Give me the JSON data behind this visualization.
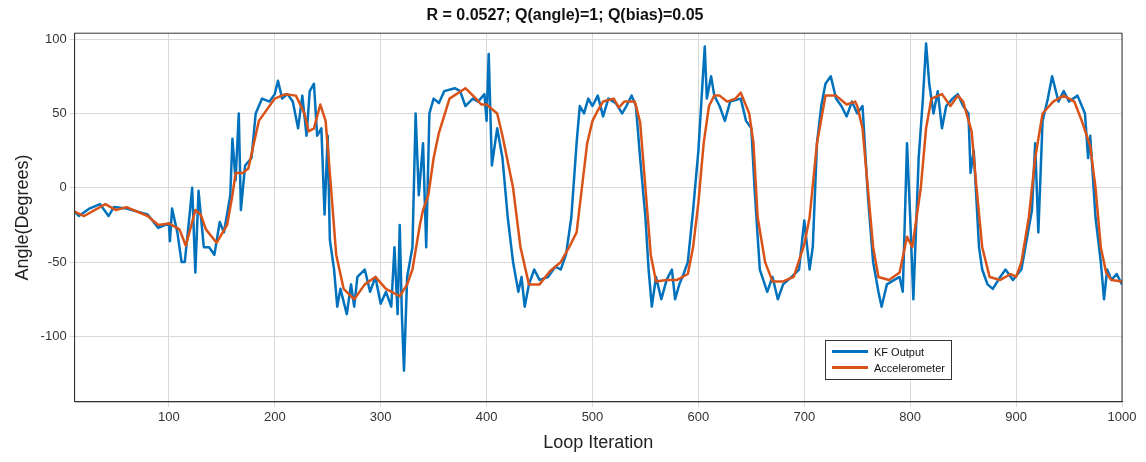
{
  "chart_data": {
    "type": "line",
    "title": "R = 0.0527; Q(angle)=1; Q(bias)=0.05",
    "xlabel": "Loop Iteration",
    "ylabel": "Angle(Degrees)",
    "xlim": [
      11,
      1000
    ],
    "xticks": [
      100,
      200,
      300,
      400,
      500,
      600,
      700,
      800,
      900,
      1000
    ],
    "ylim": [
      -144,
      104
    ],
    "yticks": [
      -100,
      -50,
      0,
      50,
      100
    ],
    "grid": true,
    "legend": "bottom right",
    "marker": "none",
    "line_style": "solid",
    "series": [
      {
        "name": "KF Output",
        "color": "#0072bd",
        "x": [
          11,
          15,
          25,
          35,
          43,
          48,
          60,
          80,
          90,
          100,
          101,
          103,
          108,
          112,
          115,
          120,
          122,
          125,
          128,
          133,
          138,
          143,
          148,
          152,
          158,
          160,
          163,
          166,
          168,
          172,
          178,
          182,
          188,
          195,
          200,
          203,
          207,
          212,
          217,
          222,
          226,
          230,
          233,
          237,
          240,
          244,
          247,
          250,
          252,
          256,
          259,
          262,
          268,
          272,
          275,
          278,
          285,
          290,
          295,
          300,
          305,
          310,
          313,
          316,
          318,
          320,
          322,
          325,
          330,
          333,
          336,
          340,
          343,
          346,
          350,
          355,
          360,
          370,
          375,
          380,
          387,
          392,
          398,
          400,
          402,
          405,
          410,
          415,
          420,
          425,
          430,
          433,
          436,
          440,
          445,
          450,
          458,
          465,
          470,
          475,
          480,
          485,
          488,
          492,
          496,
          500,
          505,
          510,
          515,
          522,
          528,
          532,
          537,
          541,
          545,
          550,
          553,
          556,
          560,
          565,
          570,
          575,
          578,
          582,
          586,
          590,
          595,
          600,
          603,
          606,
          608,
          612,
          615,
          620,
          625,
          630,
          640,
          645,
          650,
          653,
          658,
          665,
          670,
          675,
          680,
          688,
          695,
          700,
          705,
          708,
          712,
          716,
          720,
          725,
          730,
          735,
          740,
          745,
          750,
          755,
          760,
          765,
          770,
          773,
          778,
          785,
          790,
          793,
          797,
          800,
          803,
          808,
          812,
          815,
          818,
          822,
          826,
          830,
          834,
          840,
          845,
          850,
          855,
          857,
          860,
          865,
          868,
          873,
          878,
          885,
          890,
          897,
          905,
          910,
          915,
          918,
          921,
          925,
          930,
          934,
          940,
          945,
          950,
          958,
          965,
          968,
          970,
          975,
          980,
          983,
          986,
          990,
          995,
          1000
        ],
        "values": [
          -16,
          -19,
          -14,
          -11,
          -19,
          -13,
          -14,
          -18,
          -27,
          -24,
          -36,
          -14,
          -30,
          -50,
          -50,
          -15,
          0,
          -57,
          -2,
          -40,
          -40,
          -45,
          -23,
          -30,
          -5,
          33,
          5,
          50,
          -15,
          15,
          20,
          50,
          60,
          58,
          63,
          72,
          60,
          63,
          58,
          40,
          62,
          35,
          65,
          70,
          35,
          40,
          -18,
          35,
          -35,
          -55,
          -80,
          -68,
          -85,
          -65,
          -80,
          -60,
          -55,
          -70,
          -60,
          -78,
          -70,
          -80,
          -40,
          -85,
          -25,
          -85,
          -123,
          -60,
          -40,
          50,
          -5,
          30,
          -40,
          50,
          60,
          57,
          65,
          67,
          65,
          55,
          60,
          58,
          63,
          45,
          90,
          15,
          40,
          20,
          -20,
          -50,
          -70,
          -60,
          -80,
          -65,
          -55,
          -62,
          -60,
          -53,
          -55,
          -45,
          -20,
          30,
          55,
          50,
          60,
          55,
          62,
          48,
          60,
          57,
          50,
          55,
          62,
          55,
          20,
          -20,
          -55,
          -80,
          -60,
          -75,
          -62,
          -55,
          -75,
          -65,
          -58,
          -50,
          -15,
          25,
          60,
          95,
          60,
          75,
          62,
          55,
          45,
          58,
          60,
          45,
          40,
          0,
          -55,
          -70,
          -60,
          -75,
          -65,
          -60,
          -55,
          -22,
          -55,
          -40,
          30,
          55,
          70,
          75,
          60,
          55,
          48,
          58,
          50,
          55,
          -5,
          -50,
          -70,
          -80,
          -65,
          -62,
          -60,
          -70,
          30,
          -20,
          -75,
          20,
          60,
          97,
          70,
          50,
          65,
          40,
          55,
          60,
          63,
          55,
          50,
          10,
          25,
          -40,
          -55,
          -65,
          -68,
          -60,
          -55,
          -62,
          -55,
          -35,
          -15,
          30,
          -30,
          45,
          60,
          75,
          58,
          65,
          58,
          62,
          50,
          20,
          35,
          -20,
          -50,
          -75,
          -55,
          -62,
          -58,
          -65
        ]
      },
      {
        "name": "Accelerometer",
        "color": "#d95319",
        "x": [
          11,
          20,
          40,
          50,
          60,
          80,
          90,
          100,
          110,
          116,
          125,
          130,
          135,
          145,
          155,
          160,
          163,
          170,
          175,
          185,
          200,
          210,
          220,
          228,
          232,
          237,
          243,
          248,
          252,
          258,
          265,
          275,
          285,
          295,
          305,
          318,
          325,
          330,
          337,
          340,
          345,
          350,
          355,
          365,
          380,
          390,
          395,
          400,
          410,
          415,
          425,
          432,
          440,
          450,
          460,
          470,
          478,
          485,
          495,
          500,
          505,
          510,
          520,
          525,
          530,
          540,
          545,
          550,
          555,
          560,
          570,
          580,
          590,
          595,
          600,
          605,
          610,
          615,
          620,
          627,
          635,
          640,
          648,
          652,
          656,
          663,
          670,
          680,
          690,
          700,
          705,
          712,
          720,
          730,
          740,
          748,
          750,
          755,
          760,
          765,
          770,
          780,
          790,
          797,
          802,
          810,
          815,
          820,
          830,
          838,
          845,
          850,
          858,
          862,
          868,
          875,
          885,
          895,
          900,
          905,
          912,
          918,
          925,
          935,
          945,
          955,
          962,
          970,
          975,
          980,
          985,
          990,
          1000
        ],
        "values": [
          -16,
          -19,
          -11,
          -15,
          -13,
          -19,
          -25,
          -24,
          -28,
          -39,
          -15,
          -18,
          -28,
          -37,
          -25,
          -5,
          10,
          10,
          13,
          45,
          60,
          63,
          62,
          50,
          38,
          40,
          56,
          45,
          10,
          -45,
          -68,
          -75,
          -65,
          -60,
          -68,
          -73,
          -65,
          -55,
          -25,
          -15,
          -5,
          20,
          37,
          60,
          67,
          60,
          56,
          56,
          50,
          35,
          0,
          -40,
          -65,
          -65,
          -56,
          -50,
          -40,
          -30,
          30,
          45,
          52,
          58,
          60,
          54,
          58,
          58,
          44,
          0,
          -45,
          -63,
          -62,
          -62,
          -58,
          -40,
          -10,
          30,
          55,
          62,
          62,
          58,
          60,
          64,
          50,
          30,
          -20,
          -50,
          -63,
          -63,
          -60,
          -38,
          -20,
          30,
          62,
          62,
          56,
          58,
          55,
          40,
          0,
          -40,
          -60,
          -62,
          -57,
          -33,
          -40,
          0,
          40,
          60,
          63,
          55,
          62,
          58,
          38,
          5,
          -40,
          -60,
          -62,
          -58,
          -60,
          -50,
          -20,
          20,
          50,
          58,
          62,
          58,
          45,
          28,
          0,
          -40,
          -57,
          -62,
          -63
        ]
      }
    ]
  }
}
